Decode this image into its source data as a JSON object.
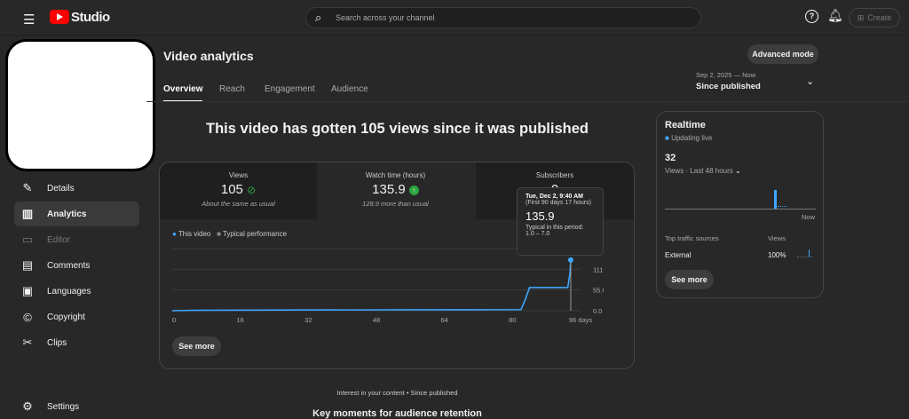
{
  "header": {
    "logo": "Studio",
    "search_placeholder": "Search across your channel",
    "create_label": "Create",
    "icons": [
      "menu-icon",
      "search-icon",
      "help-icon",
      "bell-icon",
      "create-video-icon"
    ]
  },
  "sidebar": {
    "items": [
      {
        "label": "Details",
        "icon": "pencil-icon"
      },
      {
        "label": "Analytics",
        "icon": "bar-chart-icon",
        "active": true
      },
      {
        "label": "Editor",
        "icon": "film-icon",
        "disabled": true
      },
      {
        "label": "Comments",
        "icon": "comment-icon"
      },
      {
        "label": "Languages",
        "icon": "subtitles-icon"
      },
      {
        "label": "Copyright",
        "icon": "copyright-icon"
      },
      {
        "label": "Clips",
        "icon": "scissors-icon"
      }
    ],
    "settings": "Settings"
  },
  "page": {
    "title": "Video analytics",
    "advanced_mode": "Advanced mode",
    "tabs": [
      "Overview",
      "Reach",
      "Engagement",
      "Audience"
    ],
    "date_range": "Sep 2, 2025 — Now",
    "period": "Since published",
    "headline": "This video has gotten 105 views since it was published"
  },
  "metrics": [
    {
      "label": "Views",
      "value": "105",
      "note": "About the same as usual",
      "status": "check"
    },
    {
      "label": "Watch time (hours)",
      "value": "135.9",
      "note": "128.9 more than usual",
      "status": "up"
    },
    {
      "label": "Subscribers",
      "value": "0",
      "note": ""
    }
  ],
  "legend": {
    "this_video": "This video",
    "typical": "Typical performance"
  },
  "tooltip": {
    "date": "Tue, Dec 2, 9:40 AM",
    "period": "(First 90 days 17 hours)",
    "value": "135.9",
    "typical_label": "Typical in this period:",
    "typical_range": "1.0 – 7.0"
  },
  "chart_data": {
    "type": "line",
    "x_ticks": [
      "0",
      "16",
      "32",
      "48",
      "64",
      "80",
      "96 days"
    ],
    "y_ticks": [
      "0.0",
      "55.6",
      "111.1",
      "166.7"
    ],
    "ylim": [
      0,
      166.7
    ],
    "xlim": [
      0,
      96
    ],
    "series": [
      {
        "name": "This video",
        "color": "#3ea6ff",
        "x": [
          0,
          5,
          30,
          70,
          82,
          83,
          84,
          93,
          93.5,
          93.7
        ],
        "y": [
          0,
          1,
          2,
          2.5,
          3,
          30,
          62,
          62,
          100,
          135.9
        ]
      }
    ]
  },
  "see_more": "See more",
  "realtime": {
    "title": "Realtime",
    "status": "Updating live",
    "count": "32",
    "caption": "Views · Last 48 hours",
    "now": "Now",
    "sources_header": "Top traffic sources",
    "views_header": "Views",
    "source": "External",
    "source_pct": "100%",
    "see_more": "See more"
  },
  "footer": {
    "interest": "Interest in your content • Since published",
    "key_moments": "Key moments for audience retention"
  },
  "colors": {
    "accent": "#3ea6ff",
    "youtube_red": "#ff0000",
    "success": "#2ba640"
  }
}
